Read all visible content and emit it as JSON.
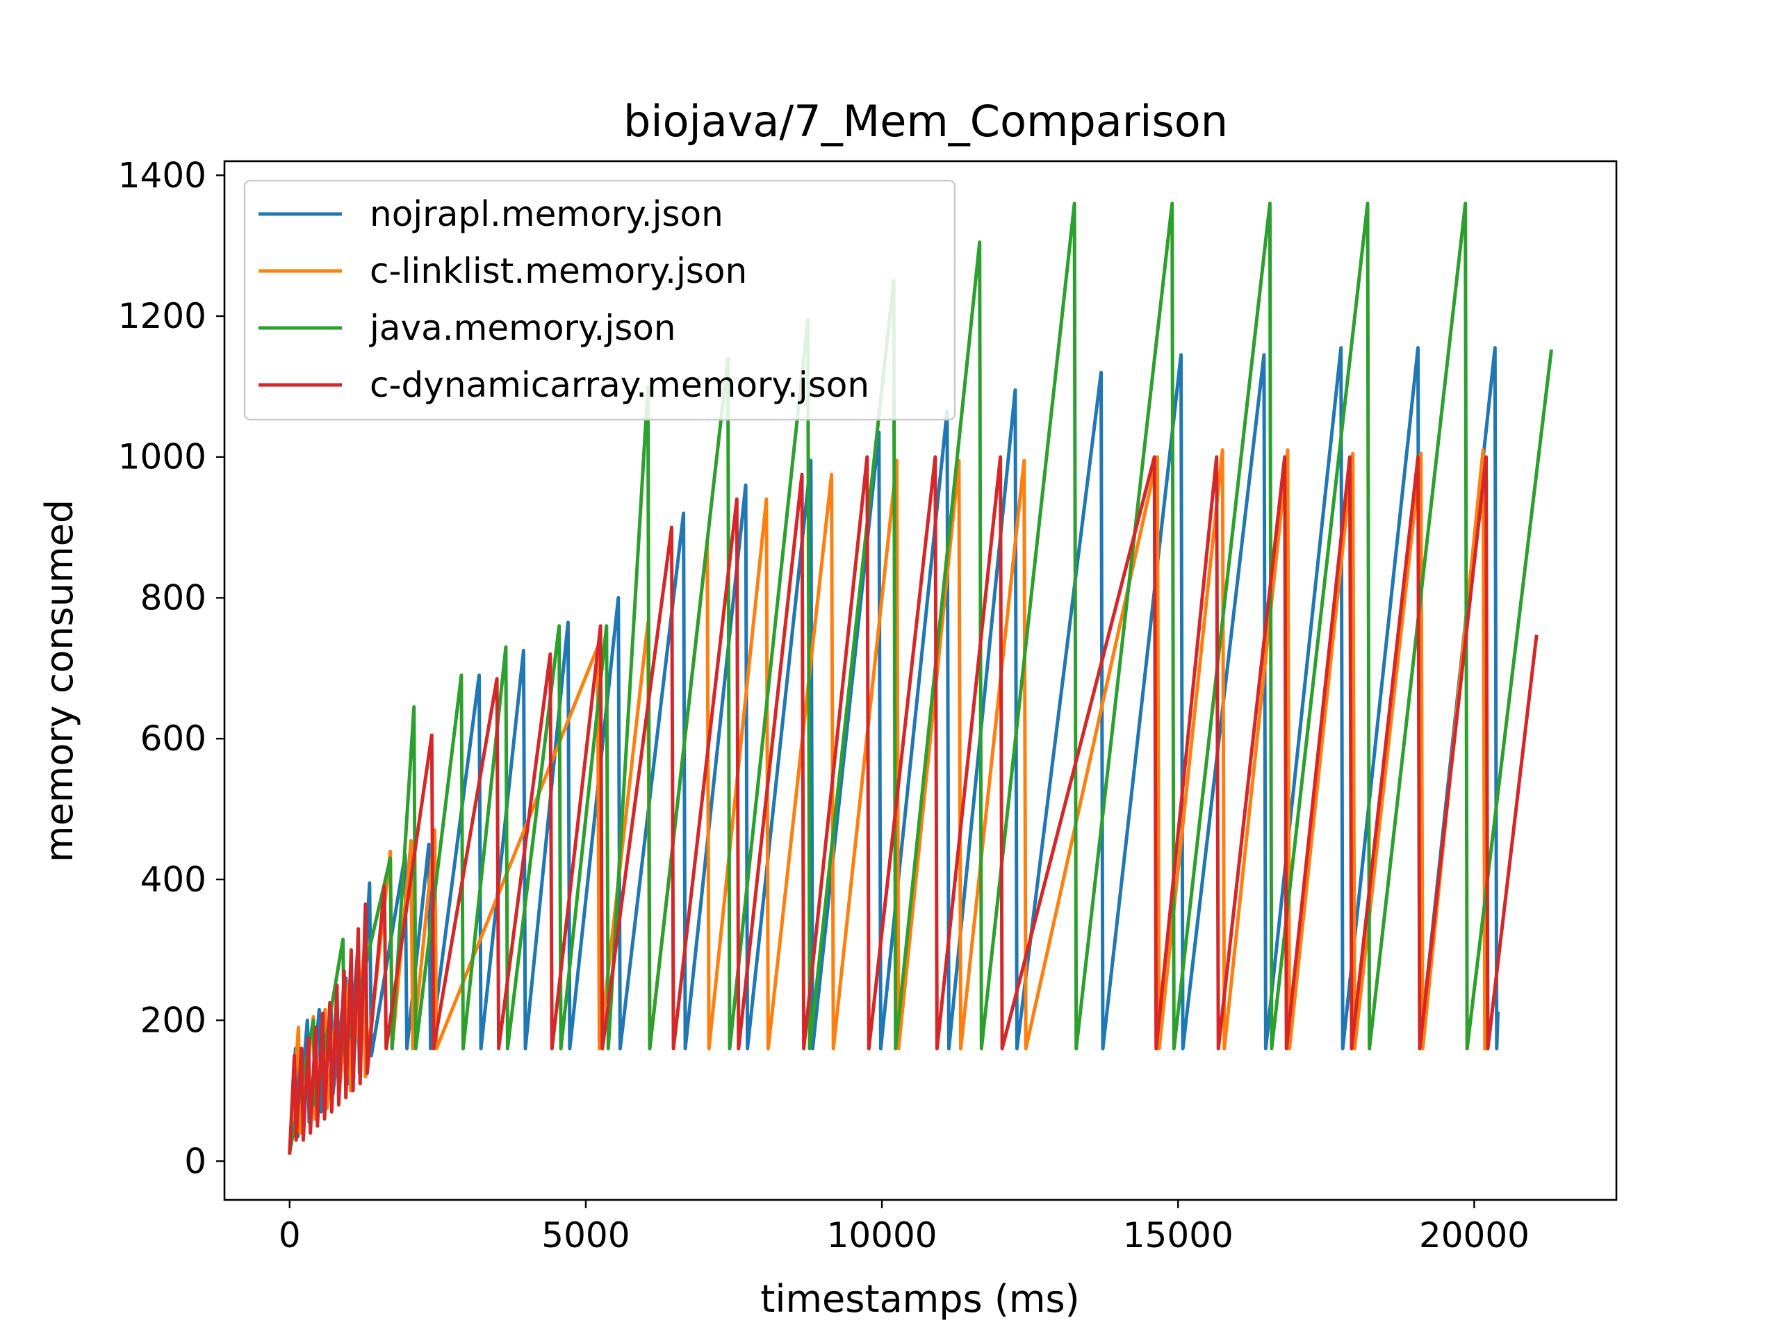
{
  "chart_data": {
    "type": "line",
    "title": "biojava/7_Mem_Comparison",
    "xlabel": "timestamps (ms)",
    "ylabel": "memory consumed",
    "xlim": [
      -1100,
      22400
    ],
    "ylim": [
      -55,
      1420
    ],
    "xticks": [
      0,
      5000,
      10000,
      15000,
      20000
    ],
    "xtick_labels": [
      "0",
      "5000",
      "10000",
      "15000",
      "20000"
    ],
    "yticks": [
      0,
      200,
      400,
      600,
      800,
      1000,
      1200,
      1400
    ],
    "ytick_labels": [
      "0",
      "200",
      "400",
      "600",
      "800",
      "1000",
      "1200",
      "1400"
    ],
    "grid": false,
    "legend_position": "upper-left",
    "series": [
      {
        "name": "nojrapl.memory.json",
        "color": "#1f77b4",
        "points": [
          [
            0,
            12
          ],
          [
            100,
            160
          ],
          [
            140,
            35
          ],
          [
            300,
            200
          ],
          [
            330,
            55
          ],
          [
            500,
            215
          ],
          [
            530,
            70
          ],
          [
            700,
            225
          ],
          [
            730,
            95
          ],
          [
            950,
            260
          ],
          [
            980,
            110
          ],
          [
            1150,
            300
          ],
          [
            1180,
            125
          ],
          [
            1350,
            395
          ],
          [
            1380,
            150
          ],
          [
            1950,
            435
          ],
          [
            1980,
            160
          ],
          [
            2350,
            450
          ],
          [
            2380,
            160
          ],
          [
            3200,
            690
          ],
          [
            3230,
            160
          ],
          [
            3950,
            725
          ],
          [
            3980,
            160
          ],
          [
            4700,
            765
          ],
          [
            4730,
            160
          ],
          [
            5550,
            800
          ],
          [
            5580,
            160
          ],
          [
            6650,
            920
          ],
          [
            6680,
            160
          ],
          [
            7700,
            960
          ],
          [
            7730,
            160
          ],
          [
            8800,
            995
          ],
          [
            8830,
            160
          ],
          [
            9950,
            1035
          ],
          [
            9980,
            160
          ],
          [
            11100,
            1065
          ],
          [
            11130,
            160
          ],
          [
            12250,
            1095
          ],
          [
            12280,
            160
          ],
          [
            13700,
            1120
          ],
          [
            13730,
            160
          ],
          [
            15050,
            1145
          ],
          [
            15080,
            160
          ],
          [
            16450,
            1145
          ],
          [
            16480,
            160
          ],
          [
            17750,
            1155
          ],
          [
            17780,
            160
          ],
          [
            19050,
            1155
          ],
          [
            19080,
            160
          ],
          [
            20350,
            1155
          ],
          [
            20380,
            160
          ],
          [
            20400,
            210
          ]
        ]
      },
      {
        "name": "c-linklist.memory.json",
        "color": "#ff7f0e",
        "points": [
          [
            0,
            12
          ],
          [
            150,
            190
          ],
          [
            180,
            40
          ],
          [
            400,
            205
          ],
          [
            430,
            60
          ],
          [
            600,
            215
          ],
          [
            630,
            75
          ],
          [
            800,
            225
          ],
          [
            830,
            90
          ],
          [
            1000,
            255
          ],
          [
            1030,
            100
          ],
          [
            1250,
            290
          ],
          [
            1280,
            120
          ],
          [
            1700,
            440
          ],
          [
            1730,
            160
          ],
          [
            2050,
            455
          ],
          [
            2080,
            160
          ],
          [
            2450,
            470
          ],
          [
            2480,
            160
          ],
          [
            5200,
            730
          ],
          [
            5230,
            160
          ],
          [
            6050,
            765
          ],
          [
            6080,
            160
          ],
          [
            7050,
            880
          ],
          [
            7080,
            160
          ],
          [
            8050,
            940
          ],
          [
            8080,
            160
          ],
          [
            9150,
            975
          ],
          [
            9180,
            160
          ],
          [
            10250,
            995
          ],
          [
            10280,
            160
          ],
          [
            11300,
            995
          ],
          [
            11330,
            160
          ],
          [
            12400,
            995
          ],
          [
            12430,
            160
          ],
          [
            14650,
            1000
          ],
          [
            14680,
            160
          ],
          [
            15750,
            1010
          ],
          [
            15780,
            160
          ],
          [
            16850,
            1010
          ],
          [
            16880,
            160
          ],
          [
            17950,
            1005
          ],
          [
            17980,
            160
          ],
          [
            19100,
            1005
          ],
          [
            19130,
            160
          ],
          [
            20150,
            1010
          ],
          [
            20180,
            160
          ]
        ]
      },
      {
        "name": "java.memory.json",
        "color": "#2ca02c",
        "points": [
          [
            0,
            12
          ],
          [
            400,
            200
          ],
          [
            430,
            80
          ],
          [
            900,
            315
          ],
          [
            930,
            150
          ],
          [
            1700,
            430
          ],
          [
            1730,
            160
          ],
          [
            2100,
            645
          ],
          [
            2130,
            160
          ],
          [
            2900,
            690
          ],
          [
            2930,
            160
          ],
          [
            3650,
            730
          ],
          [
            3680,
            160
          ],
          [
            4550,
            760
          ],
          [
            4580,
            160
          ],
          [
            5350,
            760
          ],
          [
            5380,
            160
          ],
          [
            6050,
            1100
          ],
          [
            6080,
            160
          ],
          [
            7400,
            1140
          ],
          [
            7430,
            160
          ],
          [
            8750,
            1195
          ],
          [
            8780,
            160
          ],
          [
            10200,
            1250
          ],
          [
            10230,
            160
          ],
          [
            11650,
            1305
          ],
          [
            11680,
            160
          ],
          [
            13250,
            1360
          ],
          [
            13280,
            160
          ],
          [
            14900,
            1360
          ],
          [
            14930,
            160
          ],
          [
            16550,
            1360
          ],
          [
            16580,
            160
          ],
          [
            18200,
            1360
          ],
          [
            18230,
            160
          ],
          [
            19850,
            1360
          ],
          [
            19880,
            160
          ],
          [
            21300,
            1150
          ]
        ]
      },
      {
        "name": "c-dynamicarray.memory.json",
        "color": "#d62728",
        "points": [
          [
            0,
            12
          ],
          [
            80,
            150
          ],
          [
            110,
            30
          ],
          [
            200,
            160
          ],
          [
            230,
            30
          ],
          [
            320,
            175
          ],
          [
            350,
            40
          ],
          [
            440,
            190
          ],
          [
            470,
            50
          ],
          [
            560,
            210
          ],
          [
            590,
            60
          ],
          [
            680,
            225
          ],
          [
            710,
            70
          ],
          [
            800,
            250
          ],
          [
            830,
            80
          ],
          [
            920,
            270
          ],
          [
            950,
            90
          ],
          [
            1040,
            300
          ],
          [
            1070,
            100
          ],
          [
            1160,
            330
          ],
          [
            1190,
            110
          ],
          [
            1280,
            365
          ],
          [
            1310,
            125
          ],
          [
            1600,
            390
          ],
          [
            1630,
            160
          ],
          [
            2400,
            605
          ],
          [
            2430,
            160
          ],
          [
            3500,
            685
          ],
          [
            3530,
            160
          ],
          [
            4400,
            720
          ],
          [
            4430,
            160
          ],
          [
            5250,
            760
          ],
          [
            5280,
            160
          ],
          [
            6450,
            900
          ],
          [
            6480,
            160
          ],
          [
            7550,
            940
          ],
          [
            7580,
            160
          ],
          [
            8650,
            975
          ],
          [
            8680,
            160
          ],
          [
            9750,
            1000
          ],
          [
            9780,
            160
          ],
          [
            10900,
            1000
          ],
          [
            10930,
            160
          ],
          [
            12000,
            1000
          ],
          [
            12030,
            160
          ],
          [
            14600,
            1000
          ],
          [
            14630,
            160
          ],
          [
            15650,
            1000
          ],
          [
            15680,
            160
          ],
          [
            16800,
            1000
          ],
          [
            16830,
            160
          ],
          [
            17900,
            1000
          ],
          [
            17930,
            160
          ],
          [
            19050,
            1000
          ],
          [
            19080,
            160
          ],
          [
            20200,
            1000
          ],
          [
            20230,
            160
          ],
          [
            21050,
            745
          ]
        ]
      }
    ]
  }
}
